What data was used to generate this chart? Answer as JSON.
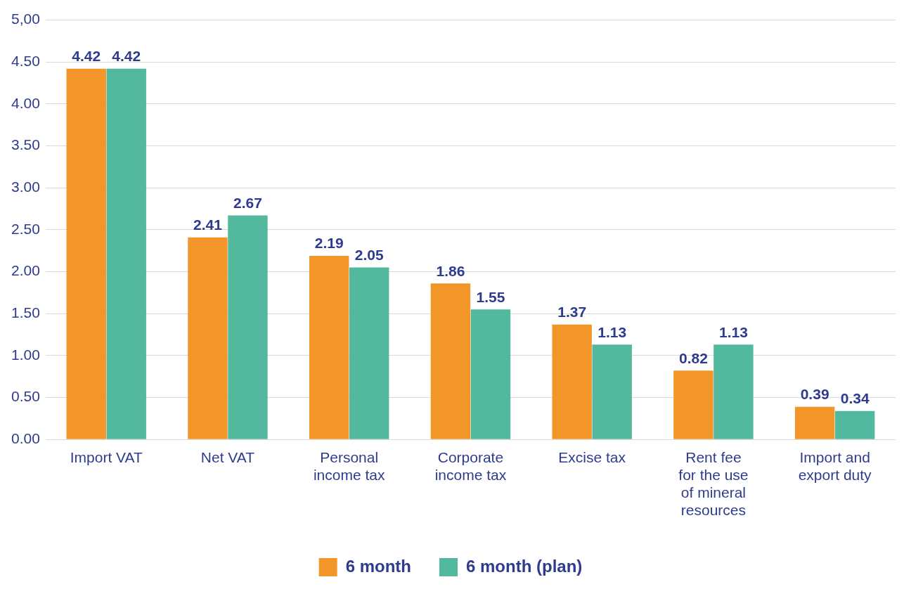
{
  "chart_data": {
    "type": "bar",
    "categories": [
      "Import VAT",
      "Net VAT",
      "Personal income tax",
      "Corporate income tax",
      "Excise tax",
      "Rent fee for the use of mineral resources",
      "Import and export duty"
    ],
    "series": [
      {
        "name": "6 month",
        "color": "#f39629",
        "values": [
          4.42,
          2.41,
          2.19,
          1.86,
          1.37,
          0.82,
          0.39
        ]
      },
      {
        "name": "6 month (plan)",
        "color": "#52b89e",
        "values": [
          4.42,
          2.67,
          2.05,
          1.55,
          1.13,
          1.13,
          0.34
        ]
      }
    ],
    "ylim": [
      0,
      5
    ],
    "yticks": [
      {
        "value": 0,
        "label": "0.00"
      },
      {
        "value": 0.5,
        "label": "0.50"
      },
      {
        "value": 1,
        "label": "1.00"
      },
      {
        "value": 1.5,
        "label": "1.50"
      },
      {
        "value": 2,
        "label": "2.00"
      },
      {
        "value": 2.5,
        "label": "2.50"
      },
      {
        "value": 3,
        "label": "3.00"
      },
      {
        "value": 3.5,
        "label": "3.50"
      },
      {
        "value": 4,
        "label": "4.00"
      },
      {
        "value": 4.5,
        "label": "4.50"
      },
      {
        "value": 5,
        "label": "5,00"
      }
    ],
    "grid": "y",
    "legend": "bottom",
    "data_labels": true
  }
}
